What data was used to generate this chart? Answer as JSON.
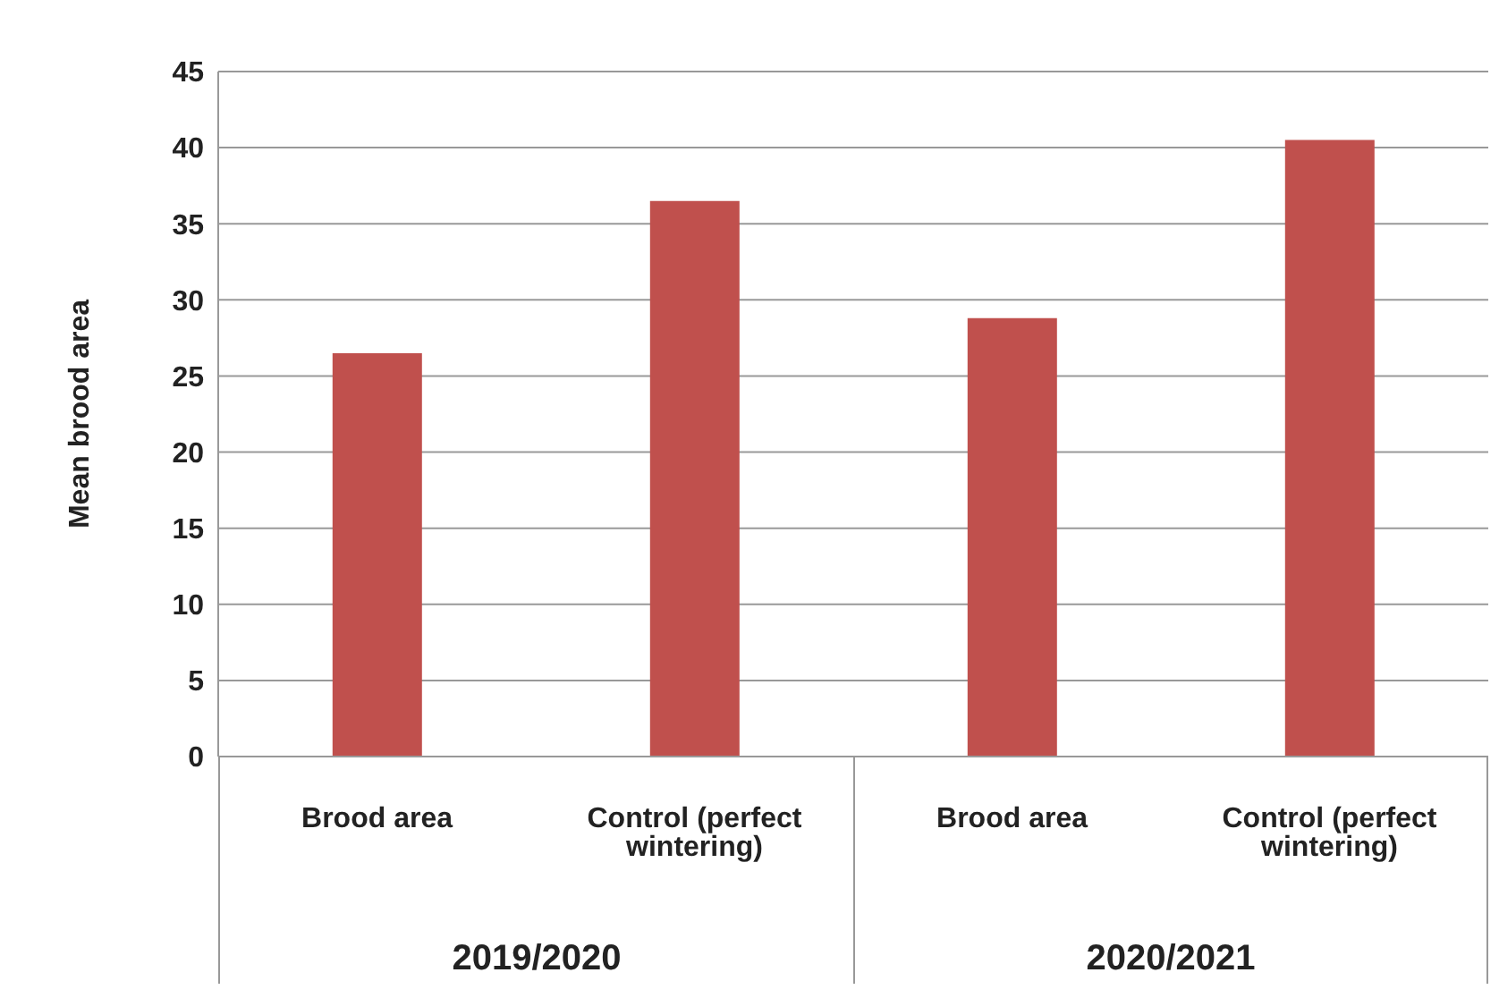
{
  "chart_data": {
    "type": "bar",
    "ylabel": "Mean brood area",
    "categories": [
      "Brood area",
      "Control (perfect wintering)",
      "Brood area",
      "Control (perfect wintering)"
    ],
    "values": [
      26.5,
      36.5,
      28.8,
      40.5
    ],
    "color": "#c0504d",
    "ylim": [
      0,
      45
    ],
    "yticks": [
      0,
      5,
      10,
      15,
      20,
      25,
      30,
      35,
      40,
      45
    ],
    "grid": "y",
    "legend": false,
    "annotations": [
      "2019/2020",
      "2020/2021"
    ]
  }
}
